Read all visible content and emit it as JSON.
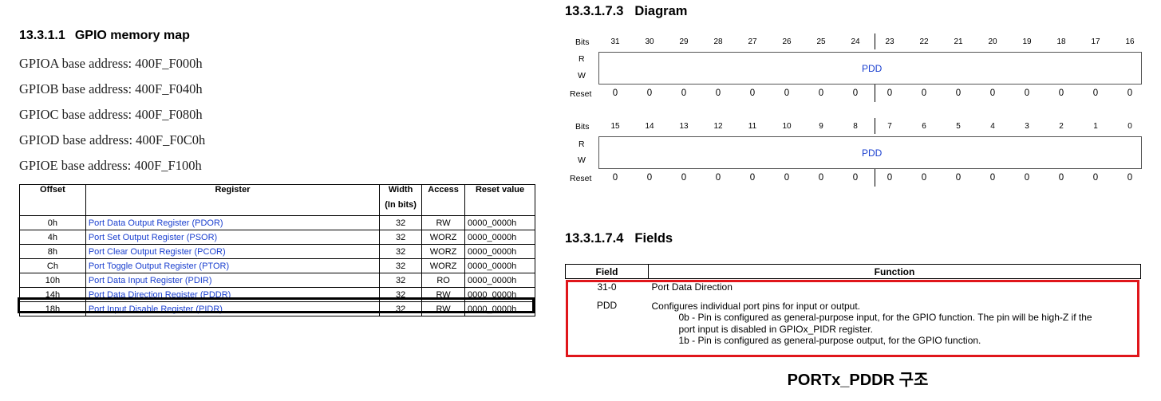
{
  "memory_map": {
    "section_number": "13.3.1.1",
    "section_title": "GPIO memory map",
    "base_addresses": [
      "GPIOA base address: 400F_F000h",
      "GPIOB base address: 400F_F040h",
      "GPIOC base address: 400F_F080h",
      "GPIOD base address: 400F_F0C0h",
      "GPIOE base address: 400F_F100h"
    ],
    "table": {
      "headers": {
        "offset": "Offset",
        "register": "Register",
        "width": "Width",
        "width_unit": "(In bits)",
        "access": "Access",
        "reset": "Reset value"
      },
      "rows": [
        {
          "offset": "0h",
          "register": "Port Data Output Register (PDOR)",
          "width": "32",
          "access": "RW",
          "reset": "0000_0000h"
        },
        {
          "offset": "4h",
          "register": "Port Set Output Register (PSOR)",
          "width": "32",
          "access": "WORZ",
          "reset": "0000_0000h"
        },
        {
          "offset": "8h",
          "register": "Port Clear Output Register (PCOR)",
          "width": "32",
          "access": "WORZ",
          "reset": "0000_0000h"
        },
        {
          "offset": "Ch",
          "register": "Port Toggle Output Register (PTOR)",
          "width": "32",
          "access": "WORZ",
          "reset": "0000_0000h"
        },
        {
          "offset": "10h",
          "register": "Port Data Input Register (PDIR)",
          "width": "32",
          "access": "RO",
          "reset": "0000_0000h"
        },
        {
          "offset": "14h",
          "register": "Port Data Direction Register (PDDR)",
          "width": "32",
          "access": "RW",
          "reset": "0000_0000h"
        },
        {
          "offset": "18h",
          "register": "Port Input Disable Register (PIDR)",
          "width": "32",
          "access": "RW",
          "reset": "0000_0000h"
        }
      ]
    }
  },
  "diagram": {
    "section_number": "13.3.1.7.3",
    "section_title": "Diagram",
    "labels": {
      "bits": "Bits",
      "read": "R",
      "write": "W",
      "reset": "Reset"
    },
    "upper": {
      "bits": [
        "31",
        "30",
        "29",
        "28",
        "27",
        "26",
        "25",
        "24",
        "23",
        "22",
        "21",
        "20",
        "19",
        "18",
        "17",
        "16"
      ],
      "field": "PDD",
      "reset": [
        "0",
        "0",
        "0",
        "0",
        "0",
        "0",
        "0",
        "0",
        "0",
        "0",
        "0",
        "0",
        "0",
        "0",
        "0",
        "0"
      ]
    },
    "lower": {
      "bits": [
        "15",
        "14",
        "13",
        "12",
        "11",
        "10",
        "9",
        "8",
        "7",
        "6",
        "5",
        "4",
        "3",
        "2",
        "1",
        "0"
      ],
      "field": "PDD",
      "reset": [
        "0",
        "0",
        "0",
        "0",
        "0",
        "0",
        "0",
        "0",
        "0",
        "0",
        "0",
        "0",
        "0",
        "0",
        "0",
        "0"
      ]
    }
  },
  "fields": {
    "section_number": "13.3.1.7.4",
    "section_title": "Fields",
    "headers": {
      "field": "Field",
      "function": "Function"
    },
    "bits": "31-0",
    "name": "PDD",
    "title": "Port Data Direction",
    "desc": "Configures individual port pins for input or output.",
    "opt0_line1": "0b - Pin is configured as general-purpose input, for the GPIO function. The pin will be high-Z if the",
    "opt0_line2": "port input is disabled in GPIOx_PIDR register.",
    "opt1": "1b - Pin is configured as general-purpose output, for the GPIO function."
  },
  "caption": "PORTx_PDDR 구조",
  "colors": {
    "highlight_red": "#e0161b",
    "link_blue": "#1a3fcf"
  }
}
